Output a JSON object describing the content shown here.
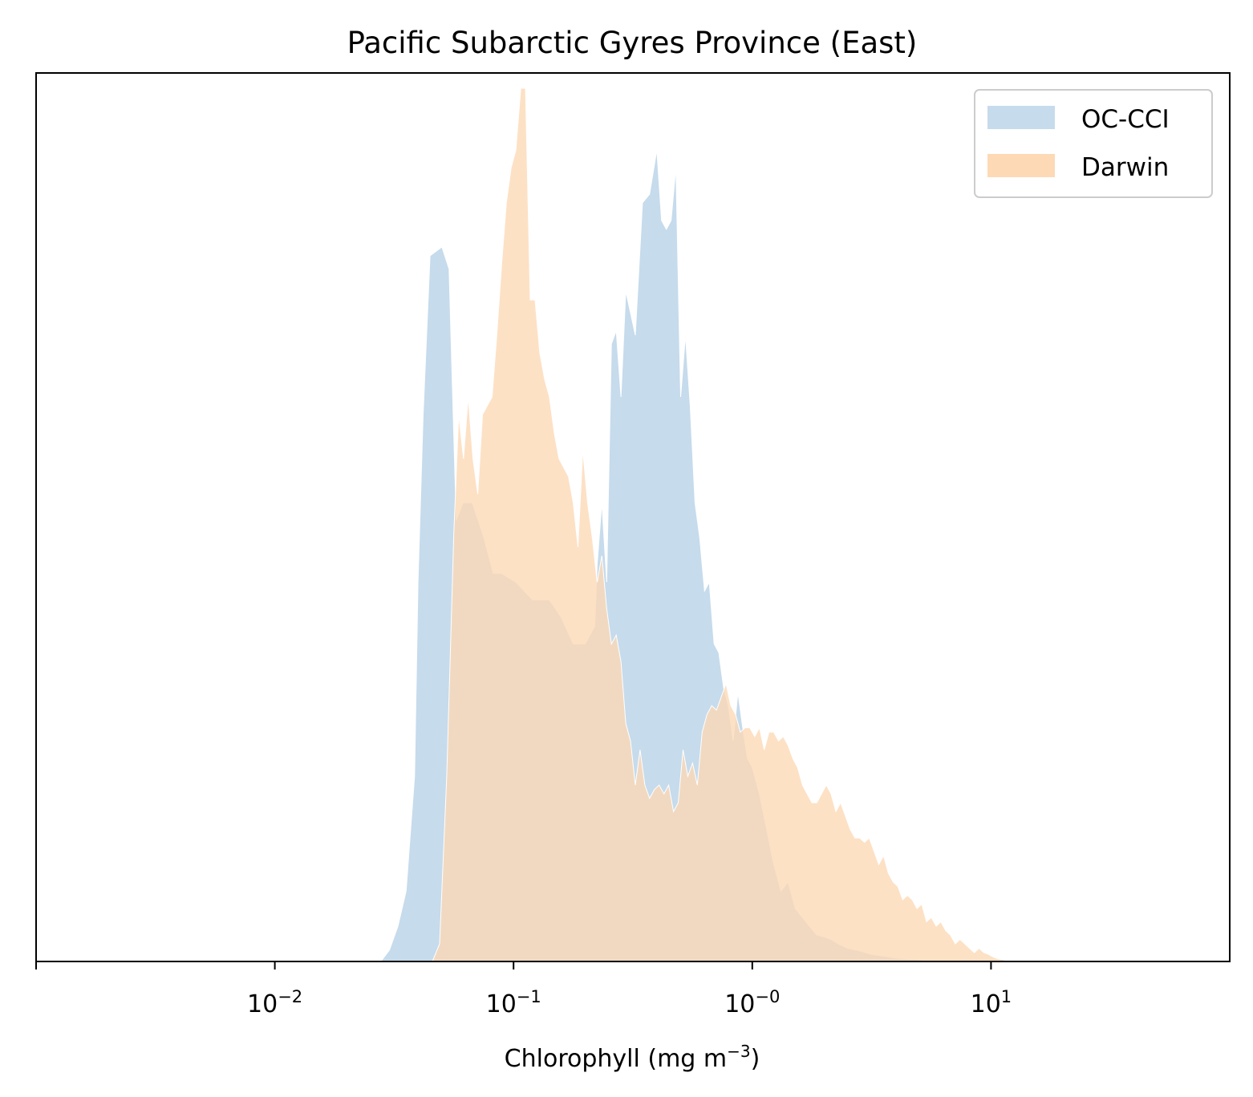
{
  "chart_data": {
    "type": "area",
    "title": "Pacific Subarctic Gyres Province (East)",
    "xlabel_main": "Chlorophyll  (mg m",
    "xlabel_sup": "−3",
    "xlabel_end": ")",
    "xscale": "log",
    "xlim": [
      0.001,
      100
    ],
    "ylim": [
      0,
      1.0
    ],
    "y_ticks_shown": false,
    "x_ticks": [
      {
        "value": 0.01,
        "base": "10",
        "exp": "−2"
      },
      {
        "value": 0.1,
        "base": "10",
        "exp": "−1"
      },
      {
        "value": 1,
        "base": "10",
        "exp": "−0"
      },
      {
        "value": 10,
        "base": "10",
        "exp": "1"
      }
    ],
    "legend": {
      "position": "top-right"
    },
    "series": [
      {
        "name": "OC-CCI",
        "color": "#c6dbec",
        "x": [
          0.0278,
          0.0302,
          0.0328,
          0.0355,
          0.0385,
          0.0398,
          0.0418,
          0.0447,
          0.0501,
          0.0537,
          0.0575,
          0.0614,
          0.0672,
          0.0752,
          0.0822,
          0.0891,
          0.1023,
          0.1202,
          0.1413,
          0.1585,
          0.1778,
          0.1995,
          0.2188,
          0.2239,
          0.2344,
          0.2455,
          0.257,
          0.2692,
          0.2818,
          0.2951,
          0.3236,
          0.3467,
          0.3715,
          0.3981,
          0.4169,
          0.4365,
          0.4571,
          0.4786,
          0.5012,
          0.5248,
          0.5495,
          0.5754,
          0.6026,
          0.631,
          0.6607,
          0.6918,
          0.7244,
          0.7586,
          0.7943,
          0.8318,
          0.871,
          0.912,
          0.955,
          1.0,
          1.0715,
          1.1482,
          1.2303,
          1.3183,
          1.4125,
          1.5136,
          1.6218,
          1.7378,
          1.8621,
          1.9953,
          2.138,
          2.2909,
          2.5119,
          2.8184,
          3.1623,
          3.5481,
          3.9811,
          4.4668,
          5.0119,
          5.6234
        ],
        "y": [
          0.0,
          0.013,
          0.04,
          0.08,
          0.21,
          0.43,
          0.62,
          0.8,
          0.81,
          0.785,
          0.5,
          0.52,
          0.52,
          0.48,
          0.44,
          0.44,
          0.43,
          0.41,
          0.41,
          0.39,
          0.36,
          0.36,
          0.38,
          0.45,
          0.52,
          0.43,
          0.7,
          0.715,
          0.64,
          0.76,
          0.71,
          0.86,
          0.87,
          0.92,
          0.84,
          0.83,
          0.84,
          0.9,
          0.64,
          0.71,
          0.63,
          0.52,
          0.48,
          0.42,
          0.43,
          0.36,
          0.35,
          0.31,
          0.29,
          0.25,
          0.305,
          0.265,
          0.23,
          0.22,
          0.19,
          0.15,
          0.11,
          0.08,
          0.09,
          0.06,
          0.05,
          0.04,
          0.03,
          0.028,
          0.025,
          0.02,
          0.015,
          0.012,
          0.008,
          0.006,
          0.004,
          0.003,
          0.002,
          0.0
        ]
      },
      {
        "name": "Darwin",
        "color": "#fdd9b5",
        "x": [
          0.0457,
          0.049,
          0.0525,
          0.0562,
          0.0589,
          0.0617,
          0.0646,
          0.0676,
          0.0708,
          0.0741,
          0.0776,
          0.0813,
          0.0851,
          0.0891,
          0.0933,
          0.0977,
          0.1023,
          0.1072,
          0.1122,
          0.1175,
          0.123,
          0.1288,
          0.1349,
          0.1413,
          0.1479,
          0.1549,
          0.1622,
          0.1698,
          0.1778,
          0.1862,
          0.195,
          0.2042,
          0.2138,
          0.2239,
          0.2344,
          0.2455,
          0.257,
          0.2692,
          0.2818,
          0.2951,
          0.309,
          0.3236,
          0.3388,
          0.3548,
          0.3715,
          0.389,
          0.4074,
          0.4266,
          0.4467,
          0.4677,
          0.4898,
          0.5129,
          0.537,
          0.5623,
          0.5888,
          0.6166,
          0.6457,
          0.6761,
          0.7079,
          0.7413,
          0.7762,
          0.8128,
          0.8511,
          0.8913,
          0.9333,
          0.9772,
          1.0233,
          1.0715,
          1.122,
          1.1749,
          1.2303,
          1.2882,
          1.349,
          1.4125,
          1.4791,
          1.5488,
          1.6218,
          1.6982,
          1.7783,
          1.8621,
          1.9498,
          2.0417,
          2.138,
          2.2387,
          2.3442,
          2.4547,
          2.5704,
          2.6915,
          2.8184,
          2.9512,
          3.0903,
          3.2359,
          3.3884,
          3.5481,
          3.7154,
          3.8905,
          4.0738,
          4.2658,
          4.4668,
          4.6774,
          4.8978,
          5.1286,
          5.3703,
          5.6234,
          5.8884,
          6.166,
          6.4565,
          6.7608,
          7.0795,
          7.4131,
          7.7625,
          8.1283,
          8.5114,
          8.9125,
          9.3325,
          9.7724,
          10.2329,
          10.7152,
          11.2202,
          11.749
        ],
        "y": [
          0.0,
          0.02,
          0.21,
          0.485,
          0.62,
          0.57,
          0.64,
          0.57,
          0.53,
          0.62,
          0.63,
          0.64,
          0.71,
          0.79,
          0.86,
          0.9,
          0.92,
          0.99,
          0.99,
          0.75,
          0.75,
          0.69,
          0.66,
          0.64,
          0.6,
          0.57,
          0.56,
          0.55,
          0.52,
          0.47,
          0.58,
          0.52,
          0.48,
          0.43,
          0.46,
          0.4,
          0.36,
          0.37,
          0.34,
          0.27,
          0.25,
          0.2,
          0.24,
          0.2,
          0.185,
          0.195,
          0.2,
          0.19,
          0.2,
          0.17,
          0.18,
          0.24,
          0.21,
          0.225,
          0.2,
          0.26,
          0.28,
          0.29,
          0.285,
          0.3,
          0.315,
          0.29,
          0.28,
          0.26,
          0.265,
          0.265,
          0.255,
          0.265,
          0.24,
          0.26,
          0.26,
          0.25,
          0.255,
          0.245,
          0.23,
          0.22,
          0.2,
          0.19,
          0.18,
          0.18,
          0.19,
          0.2,
          0.19,
          0.17,
          0.18,
          0.165,
          0.15,
          0.14,
          0.14,
          0.135,
          0.14,
          0.125,
          0.11,
          0.12,
          0.1,
          0.09,
          0.085,
          0.07,
          0.075,
          0.07,
          0.06,
          0.065,
          0.045,
          0.05,
          0.04,
          0.045,
          0.035,
          0.03,
          0.02,
          0.025,
          0.02,
          0.015,
          0.01,
          0.015,
          0.01,
          0.008,
          0.005,
          0.003,
          0.002,
          0.0
        ]
      }
    ]
  }
}
